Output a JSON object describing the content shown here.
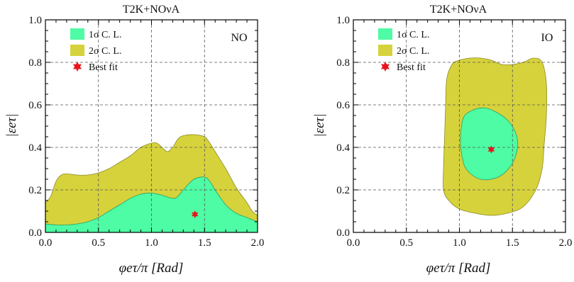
{
  "chart_data": [
    {
      "type": "area",
      "title": "T2K+NOνA",
      "tag": "NO",
      "xlabel": "φeτ/π [Rad]",
      "ylabel": "|εeτ|",
      "xlim": [
        0,
        2
      ],
      "ylim": [
        0,
        1
      ],
      "xticks": [
        "0.0",
        "0.5",
        "1.0",
        "1.5",
        "2.0"
      ],
      "yticks": [
        "0.0",
        "0.2",
        "0.4",
        "0.6",
        "0.8",
        "1.0"
      ],
      "grid": true,
      "legend_position": "top-left",
      "legend": [
        "1σ C. L.",
        "2σ C. L.",
        "Best fit"
      ],
      "colors": {
        "sigma1": "#4dfca4",
        "sigma2": "#d6d23b",
        "best_fit": "#e8151b"
      },
      "regions": {
        "sigma2_upper": [
          [
            0.0,
            0.14
          ],
          [
            0.05,
            0.17
          ],
          [
            0.1,
            0.24
          ],
          [
            0.15,
            0.27
          ],
          [
            0.2,
            0.275
          ],
          [
            0.3,
            0.27
          ],
          [
            0.4,
            0.27
          ],
          [
            0.5,
            0.28
          ],
          [
            0.6,
            0.3
          ],
          [
            0.7,
            0.33
          ],
          [
            0.8,
            0.36
          ],
          [
            0.9,
            0.4
          ],
          [
            1.0,
            0.42
          ],
          [
            1.05,
            0.42
          ],
          [
            1.1,
            0.4
          ],
          [
            1.15,
            0.38
          ],
          [
            1.2,
            0.4
          ],
          [
            1.25,
            0.44
          ],
          [
            1.3,
            0.455
          ],
          [
            1.4,
            0.46
          ],
          [
            1.5,
            0.45
          ],
          [
            1.55,
            0.42
          ],
          [
            1.6,
            0.38
          ],
          [
            1.7,
            0.3
          ],
          [
            1.8,
            0.21
          ],
          [
            1.9,
            0.14
          ],
          [
            1.95,
            0.1
          ],
          [
            2.0,
            0.08
          ]
        ],
        "sigma1_upper": [
          [
            0.0,
            0.04
          ],
          [
            0.1,
            0.035
          ],
          [
            0.2,
            0.035
          ],
          [
            0.3,
            0.04
          ],
          [
            0.4,
            0.05
          ],
          [
            0.5,
            0.07
          ],
          [
            0.6,
            0.1
          ],
          [
            0.7,
            0.13
          ],
          [
            0.8,
            0.16
          ],
          [
            0.9,
            0.18
          ],
          [
            1.0,
            0.185
          ],
          [
            1.1,
            0.175
          ],
          [
            1.2,
            0.16
          ],
          [
            1.25,
            0.17
          ],
          [
            1.3,
            0.2
          ],
          [
            1.4,
            0.25
          ],
          [
            1.5,
            0.26
          ],
          [
            1.55,
            0.24
          ],
          [
            1.6,
            0.2
          ],
          [
            1.7,
            0.13
          ],
          [
            1.8,
            0.09
          ],
          [
            1.9,
            0.07
          ],
          [
            2.0,
            0.05
          ]
        ],
        "sigma1_closed": false
      },
      "best_fit": [
        1.41,
        0.085
      ]
    },
    {
      "type": "area",
      "title": "T2K+NOνA",
      "tag": "IO",
      "xlabel": "φeτ/π [Rad]",
      "ylabel": "|εeτ|",
      "xlim": [
        0,
        2
      ],
      "ylim": [
        0,
        1
      ],
      "xticks": [
        "0.0",
        "0.5",
        "1.0",
        "1.5",
        "2.0"
      ],
      "yticks": [
        "0.0",
        "0.2",
        "0.4",
        "0.6",
        "0.8",
        "1.0"
      ],
      "grid": true,
      "legend_position": "top-left",
      "legend": [
        "1σ C. L.",
        "2σ C. L.",
        "Best fit"
      ],
      "colors": {
        "sigma1": "#4dfca4",
        "sigma2": "#d6d23b",
        "best_fit": "#e8151b"
      },
      "regions": {
        "sigma2_contour": [
          [
            0.93,
            0.79
          ],
          [
            1.0,
            0.81
          ],
          [
            1.1,
            0.82
          ],
          [
            1.2,
            0.82
          ],
          [
            1.3,
            0.81
          ],
          [
            1.4,
            0.79
          ],
          [
            1.5,
            0.79
          ],
          [
            1.6,
            0.8
          ],
          [
            1.7,
            0.82
          ],
          [
            1.78,
            0.8
          ],
          [
            1.82,
            0.7
          ],
          [
            1.82,
            0.55
          ],
          [
            1.8,
            0.42
          ],
          [
            1.78,
            0.3
          ],
          [
            1.72,
            0.2
          ],
          [
            1.6,
            0.12
          ],
          [
            1.45,
            0.09
          ],
          [
            1.3,
            0.08
          ],
          [
            1.15,
            0.09
          ],
          [
            1.0,
            0.11
          ],
          [
            0.9,
            0.15
          ],
          [
            0.85,
            0.2
          ],
          [
            0.85,
            0.3
          ],
          [
            0.86,
            0.45
          ],
          [
            0.87,
            0.6
          ],
          [
            0.88,
            0.72
          ]
        ],
        "sigma1_contour": [
          [
            1.05,
            0.55
          ],
          [
            1.15,
            0.58
          ],
          [
            1.25,
            0.585
          ],
          [
            1.35,
            0.565
          ],
          [
            1.45,
            0.53
          ],
          [
            1.52,
            0.48
          ],
          [
            1.55,
            0.42
          ],
          [
            1.53,
            0.36
          ],
          [
            1.48,
            0.31
          ],
          [
            1.4,
            0.27
          ],
          [
            1.3,
            0.25
          ],
          [
            1.2,
            0.25
          ],
          [
            1.12,
            0.27
          ],
          [
            1.05,
            0.31
          ],
          [
            1.02,
            0.37
          ],
          [
            1.01,
            0.43
          ],
          [
            1.02,
            0.5
          ]
        ]
      },
      "best_fit": [
        1.3,
        0.39
      ]
    }
  ]
}
